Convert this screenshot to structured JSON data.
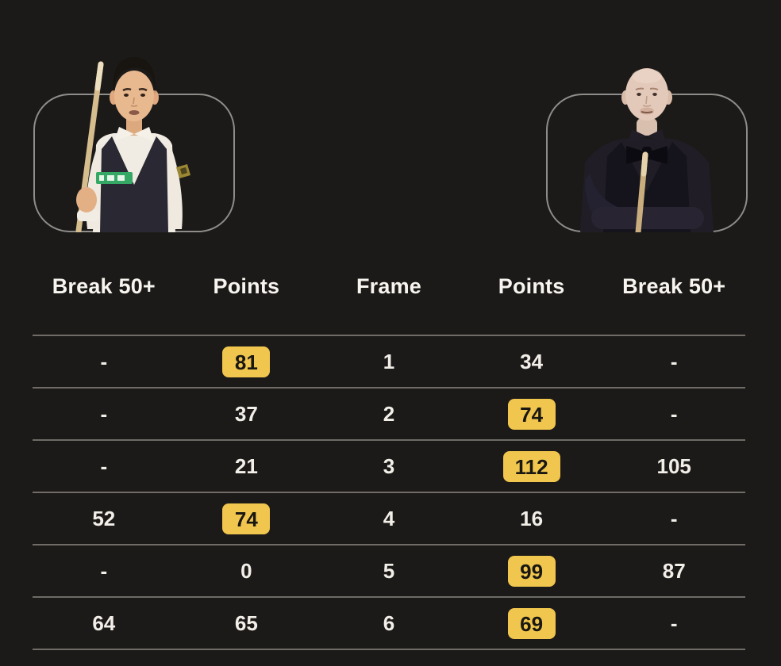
{
  "theme": {
    "background": "#1c1a18",
    "winner_badge_bg": "#f1c64e",
    "winner_badge_text": "#191712",
    "text_primary": "#f2efe9",
    "divider": "#6f6b67",
    "photo_frame_border": "#8f8d8a"
  },
  "players": {
    "left": {
      "photo": "player-left"
    },
    "right": {
      "photo": "player-right"
    }
  },
  "table": {
    "headers": [
      "Break 50+",
      "Points",
      "Frame",
      "Points",
      "Break 50+"
    ],
    "rows": [
      {
        "break_left": "-",
        "points_left": "81",
        "left_win": true,
        "frame": "1",
        "points_right": "34",
        "right_win": false,
        "break_right": "-"
      },
      {
        "break_left": "-",
        "points_left": "37",
        "left_win": false,
        "frame": "2",
        "points_right": "74",
        "right_win": true,
        "break_right": "-"
      },
      {
        "break_left": "-",
        "points_left": "21",
        "left_win": false,
        "frame": "3",
        "points_right": "112",
        "right_win": true,
        "break_right": "105"
      },
      {
        "break_left": "52",
        "points_left": "74",
        "left_win": true,
        "frame": "4",
        "points_right": "16",
        "right_win": false,
        "break_right": "-"
      },
      {
        "break_left": "-",
        "points_left": "0",
        "left_win": false,
        "frame": "5",
        "points_right": "99",
        "right_win": true,
        "break_right": "87"
      },
      {
        "break_left": "64",
        "points_left": "65",
        "left_win": false,
        "frame": "6",
        "points_right": "69",
        "right_win": true,
        "break_right": "-"
      }
    ]
  }
}
